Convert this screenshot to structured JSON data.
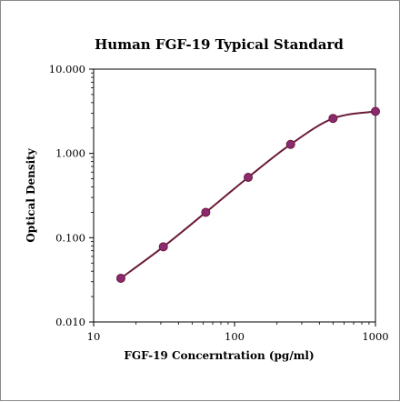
{
  "chart_data": {
    "type": "line",
    "title": "Human FGF-19 Typical Standard",
    "xlabel": "FGF-19 Concerntration (pg/ml)",
    "ylabel": "Optical Density",
    "x_scale": "log",
    "y_scale": "log",
    "xlim": [
      10,
      1000
    ],
    "ylim": [
      0.01,
      10
    ],
    "x_ticks": [
      10,
      100,
      1000
    ],
    "x_tick_labels": [
      "10",
      "100",
      "1000"
    ],
    "y_ticks": [
      0.01,
      0.1,
      1,
      10
    ],
    "y_tick_labels": [
      "0.010",
      "0.100",
      "1.000",
      "10.000"
    ],
    "grid": false,
    "series": [
      {
        "x": [
          15.6,
          31.25,
          62.5,
          125,
          250,
          500,
          1000
        ],
        "y": [
          0.033,
          0.078,
          0.2,
          0.52,
          1.28,
          2.6,
          3.15
        ]
      }
    ],
    "colors": {
      "line": "#6b1a3a",
      "marker": "#8b2a6e",
      "marker_stroke": "#6b1a3a"
    }
  }
}
